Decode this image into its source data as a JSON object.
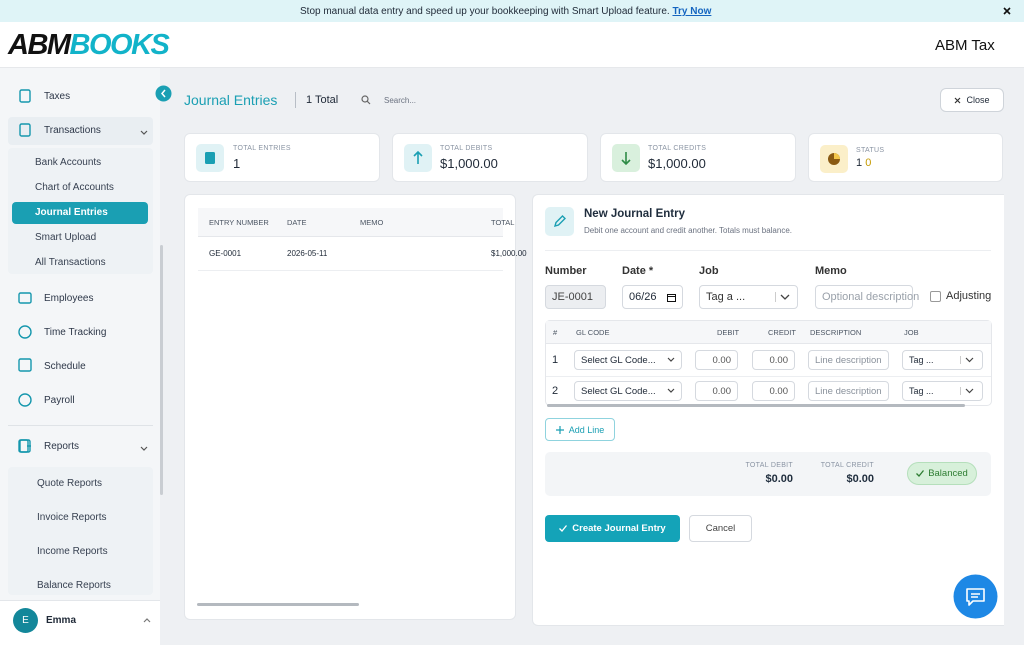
{
  "banner": {
    "message": "Stop manual data entry and speed up your bookkeeping with Smart Upload feature.",
    "link": "Try Now"
  },
  "header": {
    "logo_left": "ABM",
    "logo_right": "BOOKS",
    "company": "ABM Tax"
  },
  "sidebar": {
    "items": [
      "Taxes",
      "Transactions"
    ],
    "transactions_menu": [
      "Bank Accounts",
      "Chart of Accounts",
      "Journal Entries",
      "Smart Upload",
      "All Transactions"
    ],
    "more_items": [
      "Employees",
      "Time Tracking",
      "Schedule",
      "Payroll"
    ],
    "reports": "Reports",
    "reports_menu": [
      "Quote Reports",
      "Invoice Reports",
      "Income Reports",
      "Balance Reports"
    ],
    "user": {
      "initial": "E",
      "name": "Emma"
    }
  },
  "toolbar": {
    "title": "Journal Entries",
    "count": "1 Total",
    "search_placeholder": "Search...",
    "close": "Close"
  },
  "stats": [
    {
      "label": "TOTAL ENTRIES",
      "value": "1"
    },
    {
      "label": "TOTAL DEBITS",
      "value": "$1,000.00"
    },
    {
      "label": "TOTAL CREDITS",
      "value": "$1,000.00"
    },
    {
      "label": "STATUS",
      "value": "1",
      "value_secondary": "0"
    }
  ],
  "entries_table": {
    "columns": [
      "ENTRY NUMBER",
      "DATE",
      "MEMO",
      "TOTAL"
    ],
    "rows": [
      {
        "entry_number": "GE-0001",
        "date": "2026-05-11",
        "total": "$1,000.00"
      }
    ]
  },
  "form": {
    "title": "New Journal Entry",
    "subtitle": "Debit one account and credit another. Totals must balance.",
    "fields": {
      "number_label": "Number",
      "number": "JE-0001",
      "date_label": "Date *",
      "date": "06/26",
      "job_label": "Job",
      "job": "Tag a ...",
      "memo_label": "Memo",
      "memo_placeholder": "Optional description",
      "adjusting": "Adjusting"
    },
    "lines": {
      "columns": [
        "#",
        "GL CODE",
        "DEBIT",
        "CREDIT",
        "DESCRIPTION",
        "JOB"
      ],
      "rows": [
        {
          "number": "1",
          "gl_code": "Select GL Code...",
          "debit": "0.00",
          "credit": "0.00",
          "description": "Line description",
          "job": "Tag ..."
        },
        {
          "number": "2",
          "gl_code": "Select GL Code...",
          "debit": "0.00",
          "credit": "0.00",
          "description": "Line description",
          "job": "Tag ..."
        }
      ]
    },
    "add_line": "Add Line",
    "totals": {
      "debit_label": "TOTAL DEBIT",
      "debit": "$0.00",
      "credit_label": "TOTAL CREDIT",
      "credit": "$0.00",
      "status": "Balanced"
    },
    "submit": "Create Journal Entry",
    "cancel": "Cancel"
  }
}
